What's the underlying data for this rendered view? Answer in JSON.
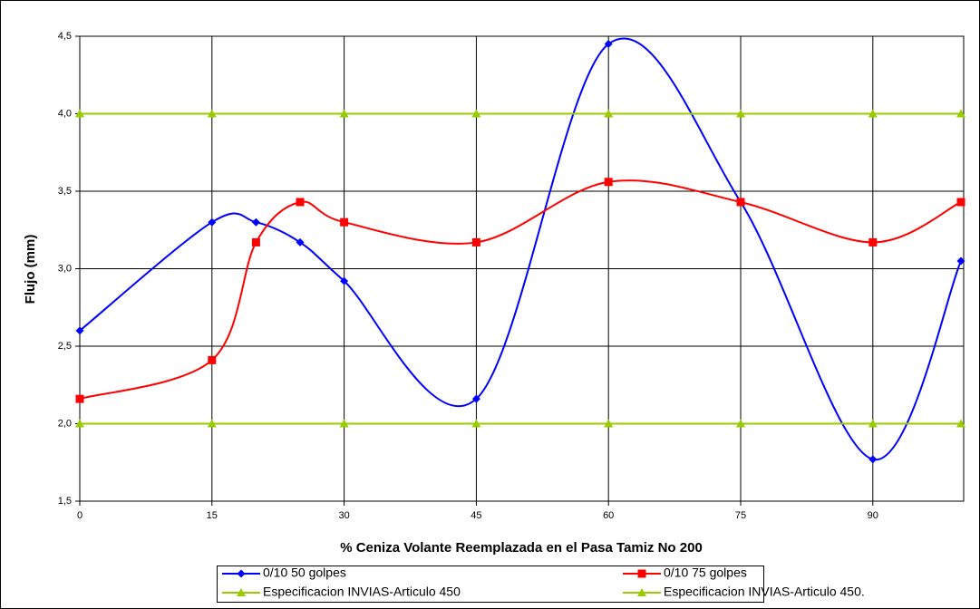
{
  "chart_data": {
    "type": "line",
    "smooth": true,
    "grid": true,
    "xlabel": "% Ceniza Volante Reemplazada en el Pasa Tamiz No 200",
    "ylabel": "Flujo (mm)",
    "xlim": [
      0,
      100
    ],
    "ylim": [
      1.5,
      4.5
    ],
    "xticks": [
      0,
      15,
      30,
      45,
      60,
      75,
      90
    ],
    "yticks": [
      {
        "value": 1.5,
        "label": "1,5"
      },
      {
        "value": 2,
        "label": "2,0"
      },
      {
        "value": 2.5,
        "label": "2,5"
      },
      {
        "value": 3,
        "label": "3,0"
      },
      {
        "value": 3.5,
        "label": "3,5"
      },
      {
        "value": 4,
        "label": "4,0"
      },
      {
        "value": 4.5,
        "label": "4,5"
      }
    ],
    "series": [
      {
        "name": "0/10 50 golpes",
        "color": "#0000ff",
        "marker": "diamond",
        "x": [
          0,
          15,
          20,
          25,
          30,
          45,
          60,
          75,
          90,
          100
        ],
        "values": [
          2.6,
          3.3,
          3.3,
          3.17,
          2.92,
          2.16,
          4.45,
          3.43,
          1.77,
          3.05
        ]
      },
      {
        "name": "0/10 75 golpes",
        "color": "#ff0000",
        "marker": "square",
        "x": [
          0,
          15,
          20,
          25,
          30,
          45,
          60,
          75,
          90,
          100
        ],
        "values": [
          2.16,
          2.41,
          3.17,
          3.43,
          3.3,
          3.17,
          3.56,
          3.43,
          3.17,
          3.43
        ]
      },
      {
        "name": "Especificacion INVIAS-Articulo 450",
        "color": "#99cc00",
        "marker": "triangle",
        "x": [
          0,
          15,
          30,
          45,
          60,
          75,
          90,
          100
        ],
        "values": [
          4,
          4,
          4,
          4,
          4,
          4,
          4,
          4
        ]
      },
      {
        "name": "Especificacion INVIAS-Articulo 450.",
        "color": "#99cc00",
        "marker": "triangle",
        "x": [
          0,
          15,
          30,
          45,
          60,
          75,
          90,
          100
        ],
        "values": [
          2,
          2,
          2,
          2,
          2,
          2,
          2,
          2
        ]
      }
    ]
  }
}
